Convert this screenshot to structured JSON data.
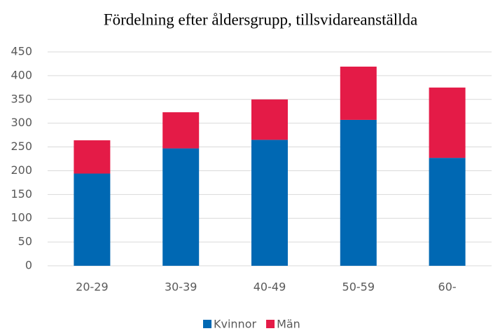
{
  "chart_data": {
    "type": "stacked_bar",
    "title": "Fördelning efter åldersgrupp, tillsvidareanställda",
    "categories": [
      "20-29",
      "30-39",
      "40-49",
      "50-59",
      "60-"
    ],
    "series": [
      {
        "name": "Kvinnor",
        "color": "#0068b3",
        "values": [
          194,
          247,
          265,
          307,
          227
        ]
      },
      {
        "name": "Män",
        "color": "#e41b47",
        "values": [
          70,
          76,
          85,
          112,
          148
        ]
      }
    ],
    "ylim": [
      0,
      450
    ],
    "yticks": [
      0,
      50,
      100,
      150,
      200,
      250,
      300,
      350,
      400,
      450
    ],
    "grid": true,
    "legend": "bottom"
  }
}
